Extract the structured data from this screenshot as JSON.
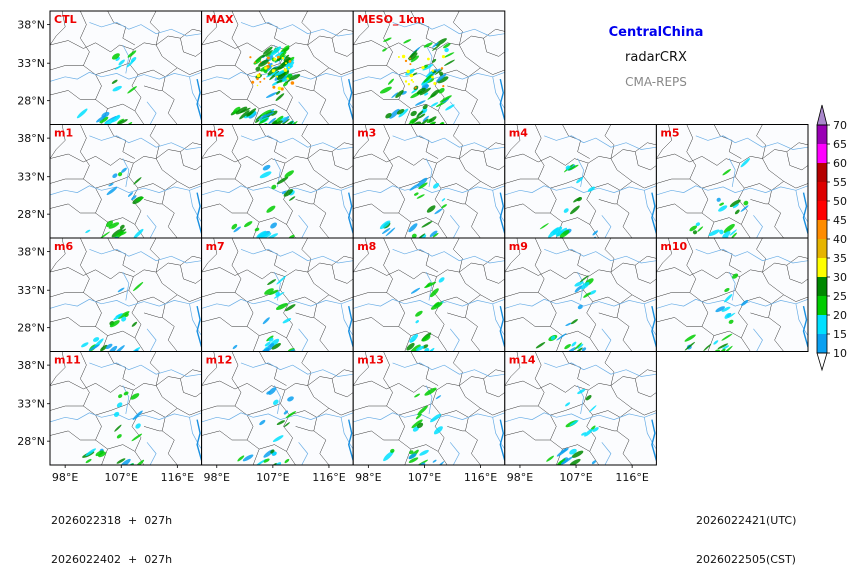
{
  "header": {
    "region": "CentralChina",
    "variable": "radarCRX",
    "system": "CMA-REPS"
  },
  "colors": {
    "region": "#0000ee",
    "system": "#888888",
    "panel_label": "#ee0000",
    "river": "#6aaee6",
    "border": "#333333"
  },
  "panels": [
    {
      "label": "CTL",
      "intensity": 1
    },
    {
      "label": "MAX",
      "intensity": 3
    },
    {
      "label": "MESO_1km",
      "intensity": 2
    },
    {
      "label": "m1",
      "intensity": 1
    },
    {
      "label": "m2",
      "intensity": 1
    },
    {
      "label": "m3",
      "intensity": 1
    },
    {
      "label": "m4",
      "intensity": 1
    },
    {
      "label": "m5",
      "intensity": 1
    },
    {
      "label": "m6",
      "intensity": 1
    },
    {
      "label": "m7",
      "intensity": 1
    },
    {
      "label": "m8",
      "intensity": 1
    },
    {
      "label": "m9",
      "intensity": 1
    },
    {
      "label": "m10",
      "intensity": 1
    },
    {
      "label": "m11",
      "intensity": 1
    },
    {
      "label": "m12",
      "intensity": 1
    },
    {
      "label": "m13",
      "intensity": 1
    },
    {
      "label": "m14",
      "intensity": 1
    }
  ],
  "axes": {
    "lat_ticks": [
      "38°N",
      "33°N",
      "28°N"
    ],
    "lon_ticks": [
      "98°E",
      "107°E",
      "116°E"
    ]
  },
  "colorbar": {
    "levels": [
      "10",
      "15",
      "20",
      "25",
      "30",
      "35",
      "40",
      "45",
      "50",
      "55",
      "60",
      "65",
      "70"
    ],
    "colors": [
      "#0aa0f0",
      "#00e0ff",
      "#00cc00",
      "#008800",
      "#ffff00",
      "#e6b400",
      "#ff8c00",
      "#ff0000",
      "#dd0000",
      "#b40000",
      "#ff00ff",
      "#9900b4",
      "#aa88cc"
    ]
  },
  "footer": {
    "init_utc": "2026022318  +  027h",
    "init_cst": "2026022402  +  027h",
    "valid_utc": "2026022421(UTC)",
    "valid_cst": "2026022505(CST)"
  }
}
